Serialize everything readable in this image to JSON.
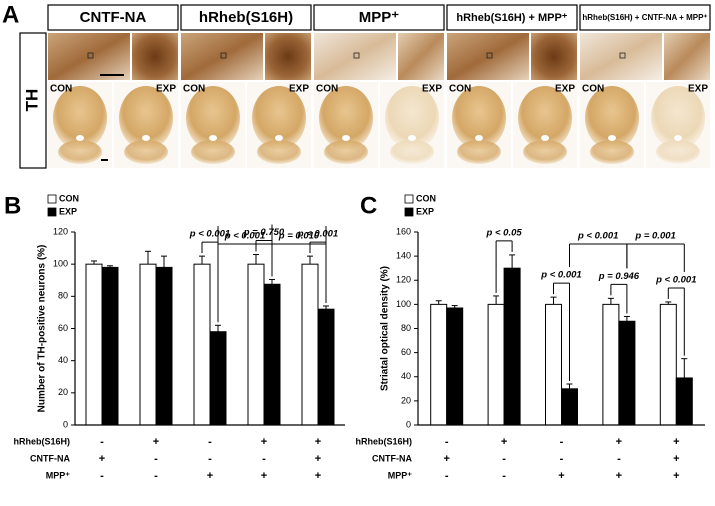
{
  "panel_a": {
    "label": "A",
    "headers": [
      "CNTF-NA",
      "hRheb(S16H)",
      "MPP⁺",
      "hRheb(S16H) + MPP⁺",
      "hRheb(S16H) + CNTF-NA + MPP⁺"
    ],
    "row_label": "TH",
    "con_label": "CON",
    "exp_label": "EXP"
  },
  "chart_data": [
    {
      "type": "bar",
      "panel_label": "B",
      "y_label": "Number of TH-positive neurons (%)",
      "categories": [
        null,
        null,
        null,
        null,
        null
      ],
      "series": [
        {
          "name": "CON",
          "color": "#ffffff",
          "values": [
            100,
            100,
            100,
            100,
            100
          ],
          "errors": [
            2,
            8,
            5,
            6,
            5
          ]
        },
        {
          "name": "EXP",
          "color": "#000000",
          "values": [
            98,
            98,
            58,
            87.5,
            72
          ],
          "errors": [
            1,
            7,
            4,
            3,
            2
          ]
        }
      ],
      "ylim": [
        0,
        120
      ],
      "yticks": [
        0,
        20,
        40,
        60,
        80,
        100,
        120
      ],
      "treatments": [
        {
          "name": "hRheb(S16H)",
          "values": [
            "-",
            "+",
            "-",
            "+",
            "+"
          ]
        },
        {
          "name": "CNTF-NA",
          "values": [
            "+",
            "-",
            "-",
            "-",
            "+"
          ]
        },
        {
          "name": "MPP⁺",
          "values": [
            "-",
            "-",
            "+",
            "+",
            "+"
          ]
        }
      ],
      "annotations": [
        "p < 0.001",
        "p = 0.750",
        "p < 0.001",
        "p < 0.001",
        "p = 0.010"
      ]
    },
    {
      "type": "bar",
      "panel_label": "C",
      "y_label": "Striatal optical density (%)",
      "categories": [
        null,
        null,
        null,
        null,
        null
      ],
      "series": [
        {
          "name": "CON",
          "color": "#ffffff",
          "values": [
            100,
            100,
            100,
            100,
            100
          ],
          "errors": [
            3,
            7,
            6,
            5,
            2
          ]
        },
        {
          "name": "EXP",
          "color": "#000000",
          "values": [
            97,
            130,
            30,
            86,
            39
          ],
          "errors": [
            2,
            11,
            4,
            4,
            16
          ]
        }
      ],
      "ylim": [
        0,
        160
      ],
      "yticks": [
        0,
        20,
        40,
        60,
        80,
        100,
        120,
        140,
        160
      ],
      "treatments": [
        {
          "name": "hRheb(S16H)",
          "values": [
            "-",
            "+",
            "-",
            "+",
            "+"
          ]
        },
        {
          "name": "CNTF-NA",
          "values": [
            "+",
            "-",
            "-",
            "-",
            "+"
          ]
        },
        {
          "name": "MPP⁺",
          "values": [
            "-",
            "-",
            "+",
            "+",
            "+"
          ]
        }
      ],
      "annotations": [
        "p < 0.05",
        "p < 0.001",
        "p = 0.946",
        "p < 0.001",
        "p < 0.001",
        "p = 0.001"
      ]
    }
  ]
}
